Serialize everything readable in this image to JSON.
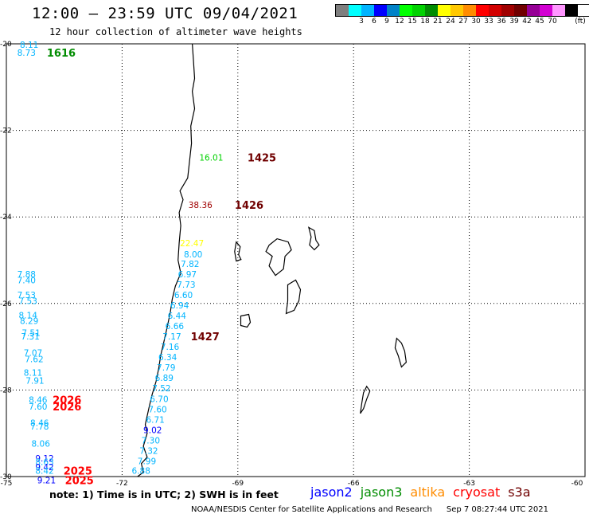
{
  "header": {
    "title": "12:00 – 23:59 UTC 09/04/2021",
    "subtitle": "12 hour collection of altimeter wave heights"
  },
  "scale": {
    "colors": [
      "#7f7f7f",
      "#00ffff",
      "#00b4ff",
      "#0000ff",
      "#0082c8",
      "#00ff00",
      "#00d200",
      "#008c00",
      "#ffff00",
      "#ffc800",
      "#ff8c00",
      "#ff0000",
      "#d20000",
      "#a00000",
      "#700000",
      "#960096",
      "#d200d2",
      "#ff96ff",
      "#000000"
    ],
    "ticks": [
      "3",
      "6",
      "9",
      "12",
      "15",
      "18",
      "21",
      "24",
      "27",
      "30",
      "33",
      "36",
      "39",
      "42",
      "45",
      "70"
    ],
    "unit": "(ft)"
  },
  "axes": {
    "lat_labels": [
      "-20",
      "-22",
      "-24",
      "-26",
      "-28",
      "-30"
    ],
    "lon_labels": [
      "-75",
      "-72",
      "-69",
      "-66",
      "-63",
      "-60"
    ]
  },
  "observations": [
    {
      "value": "8.11",
      "lon": -74.65,
      "lat": -20.02,
      "color": "#00b4ff"
    },
    {
      "value": "8.73",
      "lon": -74.72,
      "lat": -20.2,
      "color": "#00b4ff"
    },
    {
      "value": "16.01",
      "lon": -70.0,
      "lat": -22.62,
      "color": "#00d200"
    },
    {
      "value": "38.36",
      "lon": -70.28,
      "lat": -23.72,
      "color": "#a00000"
    },
    {
      "value": "22.47",
      "lon": -70.5,
      "lat": -24.6,
      "color": "#ffff00"
    },
    {
      "value": "8.00",
      "lon": -70.4,
      "lat": -24.86,
      "color": "#00b4ff"
    },
    {
      "value": "7.82",
      "lon": -70.48,
      "lat": -25.08,
      "color": "#00b4ff"
    },
    {
      "value": "6.97",
      "lon": -70.55,
      "lat": -25.32,
      "color": "#00b4ff"
    },
    {
      "value": "7.73",
      "lon": -70.58,
      "lat": -25.56,
      "color": "#00b4ff"
    },
    {
      "value": "6.60",
      "lon": -70.65,
      "lat": -25.8,
      "color": "#00b4ff"
    },
    {
      "value": "6.94",
      "lon": -70.75,
      "lat": -26.04,
      "color": "#00b4ff"
    },
    {
      "value": "6.44",
      "lon": -70.82,
      "lat": -26.28,
      "color": "#00b4ff"
    },
    {
      "value": "6.66",
      "lon": -70.88,
      "lat": -26.52,
      "color": "#00b4ff"
    },
    {
      "value": "7.17",
      "lon": -70.95,
      "lat": -26.76,
      "color": "#00b4ff"
    },
    {
      "value": "7.16",
      "lon": -71.0,
      "lat": -27.0,
      "color": "#00b4ff"
    },
    {
      "value": "6.34",
      "lon": -71.06,
      "lat": -27.24,
      "color": "#00b4ff"
    },
    {
      "value": "7.79",
      "lon": -71.1,
      "lat": -27.48,
      "color": "#00b4ff"
    },
    {
      "value": "6.89",
      "lon": -71.15,
      "lat": -27.72,
      "color": "#00b4ff"
    },
    {
      "value": "7.52",
      "lon": -71.22,
      "lat": -27.96,
      "color": "#00b4ff"
    },
    {
      "value": "6.70",
      "lon": -71.28,
      "lat": -28.2,
      "color": "#00b4ff"
    },
    {
      "value": "7.60",
      "lon": -71.32,
      "lat": -28.44,
      "color": "#00b4ff"
    },
    {
      "value": "6.71",
      "lon": -71.38,
      "lat": -28.68,
      "color": "#00b4ff"
    },
    {
      "value": "9.02",
      "lon": -71.45,
      "lat": -28.92,
      "color": "#0000ff"
    },
    {
      "value": "7.30",
      "lon": -71.5,
      "lat": -29.16,
      "color": "#00b4ff"
    },
    {
      "value": "7.32",
      "lon": -71.55,
      "lat": -29.4,
      "color": "#00b4ff"
    },
    {
      "value": "7.99",
      "lon": -71.6,
      "lat": -29.64,
      "color": "#00b4ff"
    },
    {
      "value": "6.88",
      "lon": -71.75,
      "lat": -29.86,
      "color": "#00b4ff"
    },
    {
      "value": "7.88",
      "lon": -74.72,
      "lat": -25.32,
      "color": "#00b4ff"
    },
    {
      "value": "7.40",
      "lon": -74.72,
      "lat": -25.46,
      "color": "#00b4ff"
    },
    {
      "value": "7.53",
      "lon": -74.72,
      "lat": -25.8,
      "color": "#00b4ff"
    },
    {
      "value": "7.53",
      "lon": -74.68,
      "lat": -25.94,
      "color": "#00b4ff"
    },
    {
      "value": "8.14",
      "lon": -74.68,
      "lat": -26.27,
      "color": "#00b4ff"
    },
    {
      "value": "8.29",
      "lon": -74.65,
      "lat": -26.4,
      "color": "#00b4ff"
    },
    {
      "value": "7.51",
      "lon": -74.6,
      "lat": -26.68,
      "color": "#00b4ff"
    },
    {
      "value": "7.31",
      "lon": -74.62,
      "lat": -26.76,
      "color": "#00b4ff"
    },
    {
      "value": "7.07",
      "lon": -74.55,
      "lat": -27.14,
      "color": "#00b4ff"
    },
    {
      "value": "7.62",
      "lon": -74.52,
      "lat": -27.28,
      "color": "#00b4ff"
    },
    {
      "value": "8.11",
      "lon": -74.55,
      "lat": -27.6,
      "color": "#00b4ff"
    },
    {
      "value": "7.91",
      "lon": -74.5,
      "lat": -27.78,
      "color": "#00b4ff"
    },
    {
      "value": "8.46",
      "lon": -74.42,
      "lat": -28.22,
      "color": "#00b4ff"
    },
    {
      "value": "7.60",
      "lon": -74.42,
      "lat": -28.38,
      "color": "#00b4ff"
    },
    {
      "value": "8.46",
      "lon": -74.38,
      "lat": -28.76,
      "color": "#00b4ff"
    },
    {
      "value": "7.78",
      "lon": -74.38,
      "lat": -28.84,
      "color": "#00b4ff"
    },
    {
      "value": "8.06",
      "lon": -74.35,
      "lat": -29.24,
      "color": "#00b4ff"
    },
    {
      "value": "9.12",
      "lon": -74.25,
      "lat": -29.58,
      "color": "#0000ff"
    },
    {
      "value": "8.63",
      "lon": -74.25,
      "lat": -29.66,
      "color": "#00b4ff"
    },
    {
      "value": "9.42",
      "lon": -74.25,
      "lat": -29.78,
      "color": "#0000ff"
    },
    {
      "value": "8.42",
      "lon": -74.25,
      "lat": -29.86,
      "color": "#00b4ff"
    },
    {
      "value": "9.21",
      "lon": -74.2,
      "lat": -30.08,
      "color": "#0000ff"
    }
  ],
  "times": [
    {
      "label": "1616",
      "lon": -73.95,
      "lat": -20.2,
      "color": "#008c00"
    },
    {
      "label": "1425",
      "lon": -68.75,
      "lat": -22.62,
      "color": "#700000"
    },
    {
      "label": "1426",
      "lon": -69.08,
      "lat": -23.72,
      "color": "#700000"
    },
    {
      "label": "1427",
      "lon": -70.22,
      "lat": -26.76,
      "color": "#700000"
    },
    {
      "label": "2026",
      "lon": -73.8,
      "lat": -28.22,
      "color": "#ff0000"
    },
    {
      "label": "2026",
      "lon": -73.8,
      "lat": -28.38,
      "color": "#ff0000"
    },
    {
      "label": "2025",
      "lon": -73.52,
      "lat": -29.86,
      "color": "#ff0000"
    },
    {
      "label": "2025",
      "lon": -73.48,
      "lat": -30.08,
      "color": "#ff0000"
    }
  ],
  "footer": {
    "note": "note: 1) Time is in UTC; 2) SWH is in feet",
    "satellites": [
      {
        "name": "jason2",
        "color": "#0000ff"
      },
      {
        "name": "jason3",
        "color": "#008c00"
      },
      {
        "name": "altika",
        "color": "#ff8c00"
      },
      {
        "name": "cryosat",
        "color": "#ff0000"
      },
      {
        "name": "s3a",
        "color": "#700000"
      }
    ],
    "credit": "NOAA/NESDIS Center for Satellite Applications and Research",
    "timestamp": "Sep  7 08:27:44 UTC 2021"
  }
}
